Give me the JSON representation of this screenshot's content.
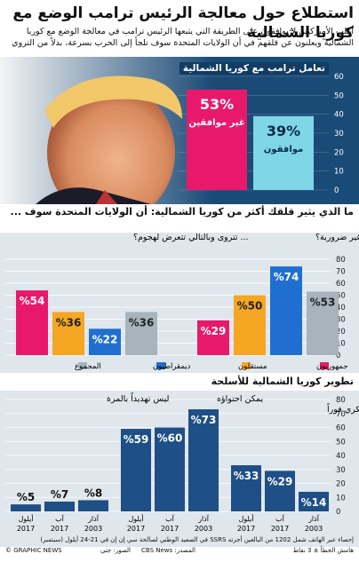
{
  "title": "استطلاع حول معالجة الرئيس ترامب الوضع مع كوريا الشمالية",
  "subtitle": "أغلب الأميركيين لا يوافقون على الطريقة التي يتبعها الرئيس ترامب في معالجة الوضع مع كوريا الشمالية ويعلنون عن قلقهم في أن الولايات المتحدة سوف تلجأ إلى الحرب بسرعة، بدلاً من التروي",
  "colors": {
    "blue": "#1e4f86",
    "pink": "#e8196a",
    "cyan": "#7fd6e6",
    "orange": "#f5a623",
    "royal": "#1f6fd0",
    "grey": "#a7b3bd",
    "gray_bg": "#dfe6ec"
  },
  "chart_data": [
    {
      "type": "bar",
      "title": "تعامل ترامب مع كوريا الشمالية",
      "categories": [
        "غير موافقين",
        "موافقون"
      ],
      "values": [
        53,
        39
      ],
      "value_labels": [
        "53%",
        "39%"
      ],
      "ylim": [
        0,
        60
      ],
      "yticks": [
        0,
        10,
        20,
        30,
        40,
        50,
        60
      ]
    },
    {
      "type": "bar",
      "title": "ما الذي يثير قلقك أكثر من كوريا الشمالية: أن الولايات المتحدة سوف ...",
      "groups": [
        {
          "label": "... تسرع في اللجوء إلى حرب غير ضرورية؟",
          "values": {
            "جمهوريون": 29,
            "مستقلون": 50,
            "ديمقراطيون": 74,
            "المجموع": 53
          }
        },
        {
          "label": "... تتروى وبالتالي تتعرض لهجوم؟",
          "values": {
            "جمهوريون": 54,
            "مستقلون": 36,
            "ديمقراطيون": 22,
            "المجموع": 36
          }
        }
      ],
      "series": [
        {
          "name": "جمهوريون",
          "color": "#e8196a"
        },
        {
          "name": "مستقلون",
          "color": "#f5a623"
        },
        {
          "name": "ديمقراطيون",
          "color": "#1f6fd0"
        },
        {
          "name": "المجموع",
          "color": "#a7b3bd"
        }
      ],
      "ylim": [
        0,
        80
      ],
      "yticks": [
        0,
        10,
        20,
        30,
        40,
        50,
        60,
        70,
        80
      ]
    },
    {
      "type": "bar",
      "title": "تطوير كوريا الشمالية للأسلحة",
      "groups": [
        {
          "label": "بحاجة لعمل عسكري فوراً",
          "values": [
            33,
            29,
            14
          ]
        },
        {
          "label": "يمكن احتواؤه",
          "values": [
            59,
            60,
            73
          ]
        },
        {
          "label": "ليس تهديداً بالمرة",
          "values": [
            5,
            7,
            8
          ]
        }
      ],
      "periods": [
        "أيلول 2017",
        "آب 2017",
        "آذار 2003"
      ],
      "ylim": [
        0,
        80
      ],
      "yticks": [
        0,
        10,
        20,
        30,
        40,
        50,
        60,
        70,
        80
      ]
    }
  ],
  "footer": {
    "method": "إحصاء عبر الهاتف شمل 1202 من البالغين أجرته SSRS في الصعيد الوطني لصالحة سي إن إن في 21-24 أيلول (سبتمبر)",
    "margin": "هامش الخطأ ± 3 نقاط",
    "source": "المصدر: CBS News",
    "photo": "الصور: جتي",
    "credit": "© GRAPHIC NEWS"
  }
}
